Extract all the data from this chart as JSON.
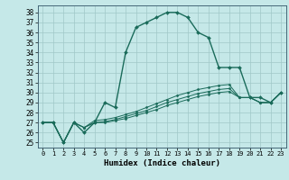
{
  "title": "",
  "xlabel": "Humidex (Indice chaleur)",
  "ylabel": "",
  "bg_color": "#c5e8e8",
  "grid_color": "#a0c8c8",
  "line_color": "#1a6b5a",
  "xlim": [
    -0.5,
    23.5
  ],
  "ylim": [
    24.5,
    38.7
  ],
  "yticks": [
    25,
    26,
    27,
    28,
    29,
    30,
    31,
    32,
    33,
    34,
    35,
    36,
    37,
    38
  ],
  "xticks": [
    0,
    1,
    2,
    3,
    4,
    5,
    6,
    7,
    8,
    9,
    10,
    11,
    12,
    13,
    14,
    15,
    16,
    17,
    18,
    19,
    20,
    21,
    22,
    23
  ],
  "series": [
    {
      "x": [
        0,
        1,
        2,
        3,
        4,
        5,
        6,
        7,
        8,
        9,
        10,
        11,
        12,
        13,
        14,
        15,
        16,
        17,
        18,
        19,
        20,
        21,
        22,
        23
      ],
      "y": [
        27,
        27,
        25,
        27,
        26,
        27,
        29,
        28.5,
        34,
        36.5,
        37,
        37.5,
        38,
        38,
        37.5,
        36,
        35.5,
        32.5,
        32.5,
        32.5,
        29.5,
        29.5,
        29,
        30
      ]
    },
    {
      "x": [
        0,
        1,
        2,
        3,
        4,
        5,
        6,
        7,
        8,
        9,
        10,
        11,
        12,
        13,
        14,
        15,
        16,
        17,
        18,
        19,
        20,
        21,
        22,
        23
      ],
      "y": [
        27,
        27,
        25,
        27,
        26.5,
        27.2,
        27.3,
        27.5,
        27.8,
        28.1,
        28.5,
        28.9,
        29.3,
        29.7,
        30.0,
        30.3,
        30.5,
        30.7,
        30.8,
        29.5,
        29.5,
        29.0,
        29.0,
        30.0
      ]
    },
    {
      "x": [
        0,
        1,
        2,
        3,
        4,
        5,
        6,
        7,
        8,
        9,
        10,
        11,
        12,
        13,
        14,
        15,
        16,
        17,
        18,
        19,
        20,
        21,
        22,
        23
      ],
      "y": [
        27,
        27,
        25,
        27,
        26.5,
        27.0,
        27.1,
        27.3,
        27.6,
        27.9,
        28.2,
        28.6,
        29.0,
        29.3,
        29.6,
        29.9,
        30.1,
        30.3,
        30.4,
        29.5,
        29.5,
        29.0,
        29.0,
        30.0
      ]
    },
    {
      "x": [
        0,
        1,
        2,
        3,
        4,
        5,
        6,
        7,
        8,
        9,
        10,
        11,
        12,
        13,
        14,
        15,
        16,
        17,
        18,
        19,
        20,
        21,
        22,
        23
      ],
      "y": [
        27,
        27,
        25,
        27,
        26.5,
        27.0,
        27.0,
        27.2,
        27.4,
        27.7,
        28.0,
        28.3,
        28.7,
        29.0,
        29.3,
        29.6,
        29.8,
        30.0,
        30.1,
        29.5,
        29.5,
        29.0,
        29.0,
        30.0
      ]
    }
  ],
  "fontsize_xlabel": 6.5,
  "fontsize_yticks": 5.5,
  "fontsize_xticks": 5.0
}
